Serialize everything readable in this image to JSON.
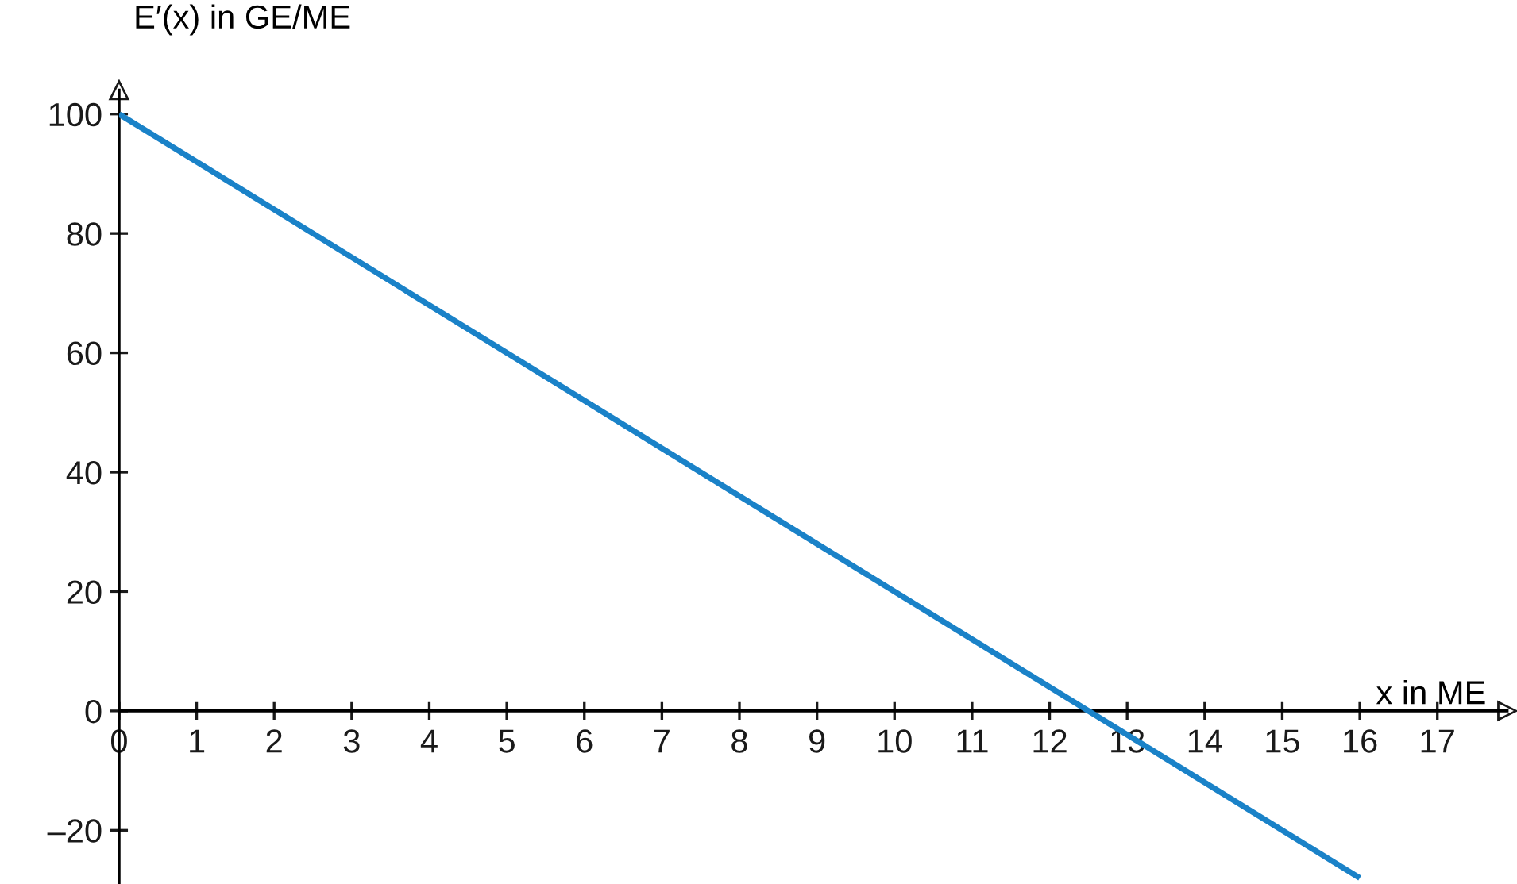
{
  "chart_data": {
    "type": "line",
    "xlabel": "x in ME",
    "ylabel": "E′(x) in GE/ME",
    "x": [
      0,
      16
    ],
    "series": [
      {
        "color": "#1a82c8",
        "values": [
          100,
          -28
        ]
      }
    ],
    "xlim": [
      0,
      17.9
    ],
    "ylim": [
      -29,
      104
    ],
    "xticks": [
      0,
      1,
      2,
      3,
      4,
      5,
      6,
      7,
      8,
      9,
      10,
      11,
      12,
      13,
      14,
      15,
      16,
      17
    ],
    "yticks": [
      {
        "value": -20,
        "label": "–20"
      },
      0,
      20,
      40,
      60,
      80,
      100
    ],
    "grid": false,
    "legend": false,
    "marker": "none",
    "line_style": "solid"
  }
}
